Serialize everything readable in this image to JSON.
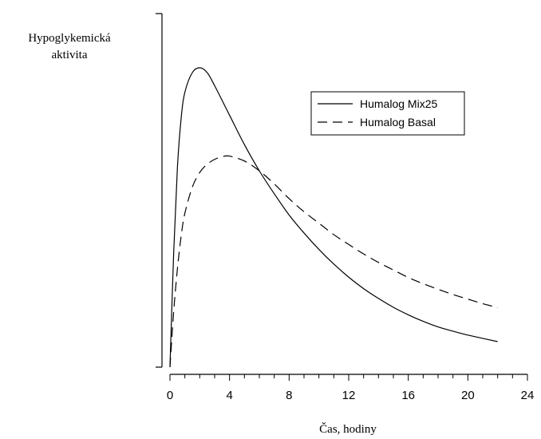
{
  "chart_data": {
    "type": "line",
    "title": "",
    "xlabel": "Čas, hodiny",
    "ylabel_lines": [
      "Hypoglykemická",
      "aktivita"
    ],
    "xlim": [
      0,
      24
    ],
    "x_ticks": [
      0,
      4,
      8,
      12,
      16,
      20,
      24
    ],
    "x_minor_step": 1,
    "grid": false,
    "y_tick_labels": false,
    "legend_position": "top-right",
    "colors": {
      "line": "#000000",
      "background": "#ffffff"
    },
    "series": [
      {
        "name": "Humalog Mix25",
        "style": "solid",
        "x": [
          0,
          0.25,
          0.5,
          0.75,
          1,
          1.5,
          2,
          2.5,
          3,
          4,
          5,
          6,
          7,
          8,
          9,
          10,
          11,
          12,
          13,
          14,
          15,
          16,
          17,
          18,
          19,
          20,
          21,
          22
        ],
        "y": [
          0,
          35,
          61,
          76,
          84,
          90,
          91.5,
          90,
          86,
          77,
          68,
          60,
          53,
          46.5,
          41,
          36,
          31.5,
          27.5,
          24,
          21,
          18.3,
          16,
          14,
          12.3,
          11,
          9.8,
          8.8,
          7.8
        ]
      },
      {
        "name": "Humalog Basal",
        "style": "dashed",
        "x": [
          0,
          0.25,
          0.5,
          0.75,
          1,
          1.5,
          2,
          2.5,
          3,
          3.5,
          4,
          5,
          6,
          7,
          8,
          9,
          10,
          11,
          12,
          13,
          14,
          15,
          16,
          17,
          18,
          19,
          20,
          21,
          22
        ],
        "y": [
          0,
          17,
          30,
          40,
          47,
          55,
          59.5,
          62,
          63.5,
          64.3,
          64.5,
          63,
          60,
          56,
          51.5,
          47.5,
          44,
          40.5,
          37.5,
          34.6,
          32,
          29.7,
          27.4,
          25.5,
          23.8,
          22.2,
          20.8,
          19.4,
          18.2
        ]
      }
    ]
  }
}
